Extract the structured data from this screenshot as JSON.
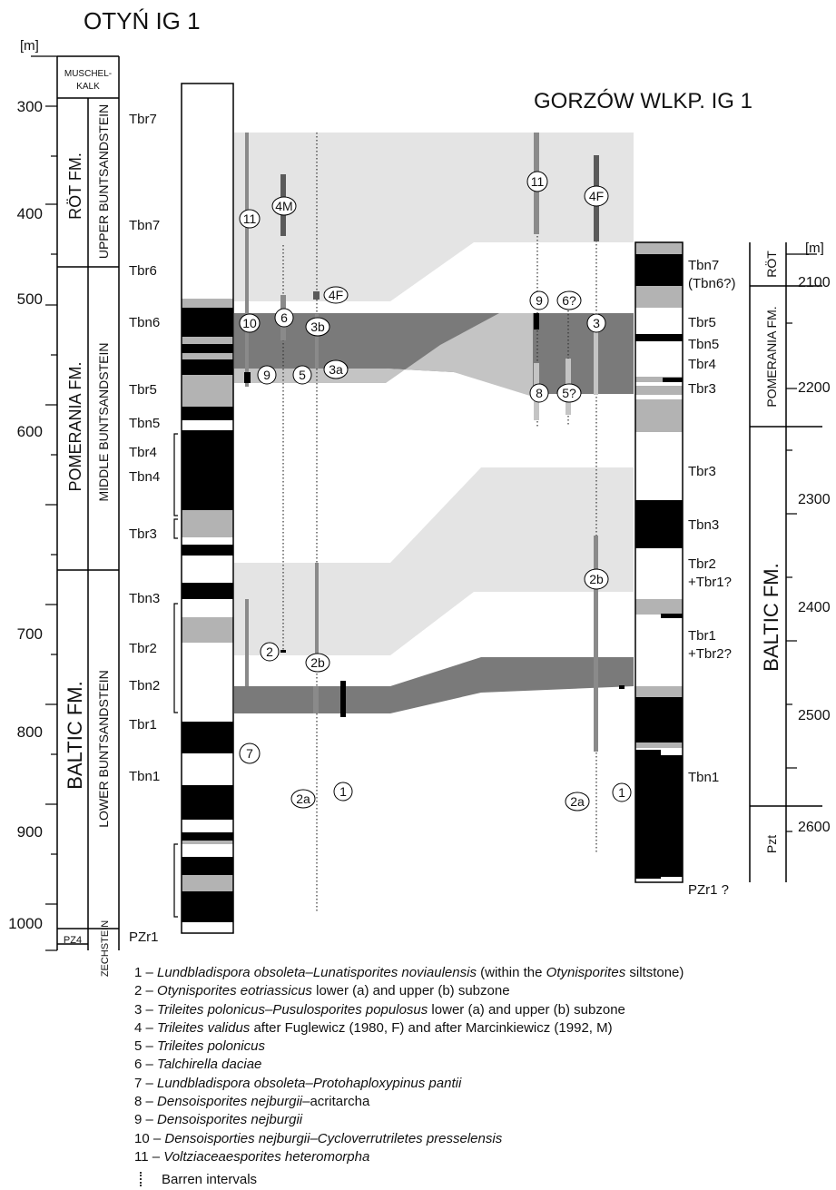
{
  "wells": {
    "left": {
      "name": "OTYŃ IG 1",
      "depth_unit": "[m]",
      "depth_ticks": [
        "300",
        "400",
        "500",
        "600",
        "700",
        "800",
        "900",
        "1000"
      ],
      "lithostratigraphy": [
        {
          "label": "MUSCHEL-",
          "label2": "KALK"
        },
        {
          "label": "RÖT FM."
        },
        {
          "label": "POMERANIA FM."
        },
        {
          "label": "BALTIC FM."
        },
        {
          "label": "PZ4"
        }
      ],
      "chronostratigraphy": [
        {
          "label": "UPPER BUNTSANDSTEIN"
        },
        {
          "label": "MIDDLE BUNTSANDSTEIN"
        },
        {
          "label": "LOWER BUNTSANDSTEIN"
        },
        {
          "label": "ZECHSTEIN"
        }
      ],
      "units": [
        "Tbr7",
        "Tbn7",
        "Tbr6",
        "Tbn6",
        "Tbr5",
        "Tbn5",
        "Tbr4",
        "Tbn4",
        "Tbr3",
        "Tbn3",
        "Tbr2",
        "Tbn2",
        "Tbr1",
        "Tbn1",
        "PZr1"
      ]
    },
    "right": {
      "name": "GORZÓW WLKP. IG 1",
      "depth_unit": "[m]",
      "depth_ticks": [
        "2100",
        "2200",
        "2300",
        "2400",
        "2500",
        "2600"
      ],
      "lithostratigraphy": [
        {
          "label": "RÖT"
        },
        {
          "label": "POMERANIA FM."
        },
        {
          "label": "BALTIC FM."
        },
        {
          "label": "Pzt"
        }
      ],
      "units": [
        "Tbn7",
        "(Tbn6?)",
        "Tbr5",
        "Tbn5",
        "Tbr4",
        "Tbr3",
        "Tbr3",
        "Tbn3",
        "Tbr2",
        "+Tbr1?",
        "Tbr1",
        "+Tbr2?",
        "Tbn1",
        "PZr1  ?"
      ]
    }
  },
  "markers": {
    "left": [
      "11",
      "4M",
      "4F",
      "10",
      "6",
      "3b",
      "9",
      "5",
      "3a",
      "2",
      "2b",
      "7",
      "2a",
      "1"
    ],
    "right": [
      "11",
      "4F",
      "9",
      "6?",
      "3",
      "8",
      "5?",
      "2b",
      "2a",
      "1"
    ]
  },
  "legend": {
    "items": [
      {
        "num": "1 –",
        "parts": [
          [
            "Lundbladispora obsoleta–Lunatisporites noviaulensis",
            true
          ],
          [
            " (within the ",
            false
          ],
          [
            "Otynisporites",
            true
          ],
          [
            " siltstone)",
            false
          ]
        ]
      },
      {
        "num": "2 –",
        "parts": [
          [
            "Otynisporites eotriassicus",
            true
          ],
          [
            " lower (a) and upper (b) subzone",
            false
          ]
        ]
      },
      {
        "num": "3 –",
        "parts": [
          [
            "Trileites polonicus–Pusulosporites populosus",
            true
          ],
          [
            " lower (a) and upper (b) subzone",
            false
          ]
        ]
      },
      {
        "num": "4 –",
        "parts": [
          [
            "Trileites validus",
            true
          ],
          [
            " after Fuglewicz (1980, F) and after Marcinkiewicz (1992, M)",
            false
          ]
        ]
      },
      {
        "num": "5 –",
        "parts": [
          [
            "Trileites polonicus",
            true
          ]
        ]
      },
      {
        "num": "6 –",
        "parts": [
          [
            "Talchirella daciae",
            true
          ]
        ]
      },
      {
        "num": "7 –",
        "parts": [
          [
            "Lundbladispora obsoleta–Protohaploxypinus pantii",
            true
          ]
        ]
      },
      {
        "num": "8 –",
        "parts": [
          [
            "Densoisporites nejburgii",
            true
          ],
          [
            "–acritarcha",
            false
          ]
        ]
      },
      {
        "num": "9 –",
        "parts": [
          [
            "Densoisporites nejburgii",
            true
          ]
        ]
      },
      {
        "num": "10 –",
        "parts": [
          [
            "Densoisporties nejburgii–Cycloverrutriletes presselensis",
            true
          ]
        ]
      },
      {
        "num": "11 –",
        "parts": [
          [
            "Voltziaceaesporites heteromorpha",
            true
          ]
        ]
      }
    ],
    "barren": "Barren intervals"
  },
  "colors": {
    "black": "#000000",
    "lith_gray": "#b3b3b3",
    "zone_dark": "#7a7a7a",
    "zone_medium": "#c4c4c4",
    "zone_light": "#e4e4e4",
    "range_bar": "#8a8a8a",
    "range_dark": "#5a5a5a"
  }
}
